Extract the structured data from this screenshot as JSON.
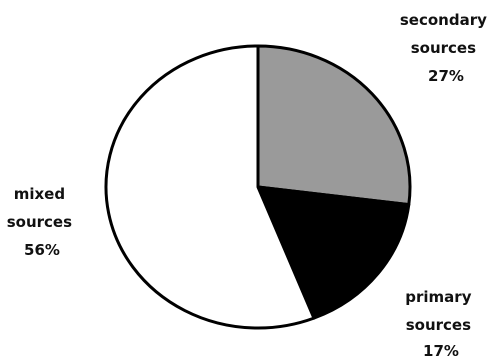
{
  "chart_data": {
    "type": "pie",
    "title": "",
    "slices": [
      {
        "label_lines": [
          "secondary",
          "sources"
        ],
        "value_text": "27%",
        "value": 27,
        "color": "#9a9a9a"
      },
      {
        "label_lines": [
          "primary",
          "sources"
        ],
        "value_text": "17%",
        "value": 17,
        "color": "#000000"
      },
      {
        "label_lines": [
          "mixed",
          "sources"
        ],
        "value_text": "56%",
        "value": 56,
        "color": "#ffffff"
      }
    ],
    "start_angle_deg": 0,
    "direction": "clockwise",
    "outline_color": "#000000"
  }
}
